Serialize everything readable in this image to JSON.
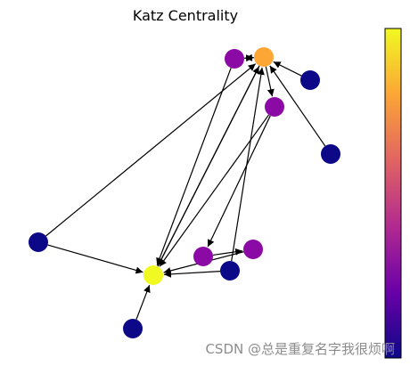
{
  "title": "Katz Centrality",
  "watermark": "CSDN @总是重复名字我很烦啊",
  "colormap": {
    "name": "plasma",
    "stops": [
      "#0d0887",
      "#6a00a8",
      "#b12a90",
      "#e16462",
      "#fca636",
      "#f0f921"
    ]
  },
  "graph": {
    "nodes": [
      {
        "id": "n0",
        "color": "#f0f921"
      },
      {
        "id": "n1",
        "color": "#fca636"
      },
      {
        "id": "n2",
        "color": "#8b0aa5"
      },
      {
        "id": "n3",
        "color": "#8b0aa5"
      },
      {
        "id": "n4",
        "color": "#8b0aa5"
      },
      {
        "id": "n5",
        "color": "#8b0aa5"
      },
      {
        "id": "n6",
        "color": "#0d0887"
      },
      {
        "id": "n7",
        "color": "#0d0887"
      },
      {
        "id": "n8",
        "color": "#0d0887"
      },
      {
        "id": "n9",
        "color": "#0d0887"
      },
      {
        "id": "n10",
        "color": "#0d0887"
      }
    ],
    "edges": [
      {
        "source": "n2",
        "target": "n1"
      },
      {
        "source": "n1",
        "target": "n2"
      },
      {
        "source": "n6",
        "target": "n1"
      },
      {
        "source": "n7",
        "target": "n1"
      },
      {
        "source": "n1",
        "target": "n3"
      },
      {
        "source": "n2",
        "target": "n0"
      },
      {
        "source": "n1",
        "target": "n0"
      },
      {
        "source": "n0",
        "target": "n1"
      },
      {
        "source": "n8",
        "target": "n1"
      },
      {
        "source": "n3",
        "target": "n0"
      },
      {
        "source": "n3",
        "target": "n4"
      },
      {
        "source": "n9",
        "target": "n1"
      },
      {
        "source": "n9",
        "target": "n0"
      },
      {
        "source": "n5",
        "target": "n0"
      },
      {
        "source": "n4",
        "target": "n5"
      },
      {
        "source": "n8",
        "target": "n0"
      },
      {
        "source": "n10",
        "target": "n0"
      }
    ]
  }
}
